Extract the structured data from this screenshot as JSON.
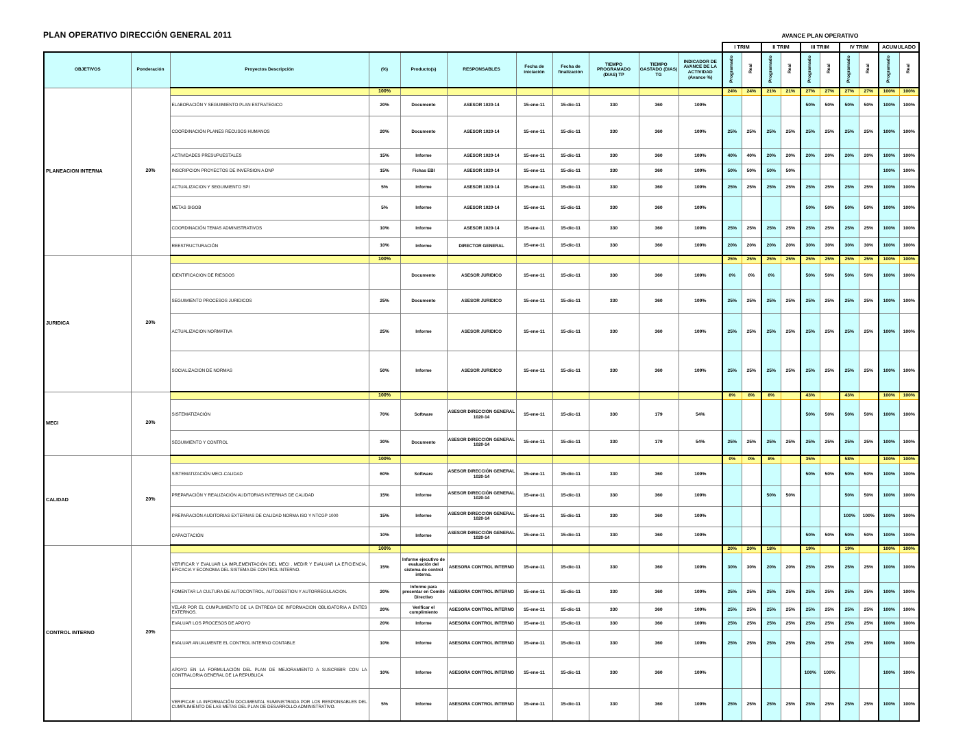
{
  "title": "PLAN OPERATIVO DIRECCIÓN GENERAL 2011",
  "avance_header": {
    "title": "AVANCE PLAN OPERATIVO",
    "trims": [
      "I TRIM",
      "II TRIM",
      "III TRIM",
      "IV TRIM",
      "ACUMULADO"
    ],
    "sub_cols": [
      "Programado",
      "Real"
    ]
  },
  "columns": [
    "OBJETIVOS",
    "Ponderación",
    "Proyectos Descripción",
    "(%)",
    "Producto(s)",
    "RESPONSABLES",
    "Fecha de iniciación",
    "Fecha de finalización",
    "TIEMPO PROGRAMADO (DIAS) TP",
    "TIEMPO GASTADO (DIAS) TG",
    "INDICADOR DE AVANCE DE LA ACTIVIDAD (Avance %)"
  ],
  "colors": {
    "header_cyan": "#ccffff",
    "programado_cyan": "#ccffff",
    "subtotal_yellow": "#ffff99",
    "subtotal_border_orange": "#e89c00"
  },
  "defaults": {
    "inicio": "15-ene-11",
    "fin": "15-dic-11",
    "tp": "330"
  },
  "sections": [
    {
      "objective": "PLANEACION INTERNA",
      "ponderacion": "20%",
      "subtotal": {
        "pct": "100%",
        "vals": [
          "24%",
          "24%",
          "21%",
          "21%",
          "27%",
          "27%",
          "27%",
          "27%",
          "100%",
          "100%"
        ]
      },
      "rows": [
        {
          "desc": "ELABORACIÓN Y SEGUIMIENTO PLAN ESTRATEGICO",
          "pct": "20%",
          "producto": "Documento",
          "responsable": "ASESOR 1020-14",
          "tg": "360",
          "indicador": "109%",
          "vals": [
            "",
            "",
            "",
            "",
            "50%",
            "50%",
            "50%",
            "50%",
            "100%",
            "100%"
          ]
        },
        {
          "desc": "COORDINACIÓN PLANES RECUSOS HUMANOS",
          "pct": "20%",
          "producto": "Documento",
          "responsable": "ASESOR 1020-14",
          "tg": "360",
          "indicador": "109%",
          "vals": [
            "25%",
            "25%",
            "25%",
            "25%",
            "25%",
            "25%",
            "25%",
            "25%",
            "100%",
            "100%"
          ]
        },
        {
          "desc": "ACTIVIDADES PRESUPUESTALES",
          "pct": "15%",
          "producto": "Informe",
          "responsable": "ASESOR 1020-14",
          "tg": "360",
          "indicador": "109%",
          "vals": [
            "40%",
            "40%",
            "20%",
            "20%",
            "20%",
            "20%",
            "20%",
            "20%",
            "100%",
            "100%"
          ]
        },
        {
          "desc": "INSCRIPCION PROYECTOS DE INVERSION A DNP",
          "pct": "15%",
          "producto": "Fichas EBI",
          "responsable": "ASESOR 1020-14",
          "tg": "360",
          "indicador": "109%",
          "vals": [
            "50%",
            "50%",
            "50%",
            "50%",
            "",
            "",
            "",
            "",
            "100%",
            "100%"
          ]
        },
        {
          "desc": "ACTUALIZACION Y SEGUIMIENTO SPI",
          "pct": "5%",
          "producto": "Informe",
          "responsable": "ASESOR 1020-14",
          "tg": "360",
          "indicador": "109%",
          "vals": [
            "25%",
            "25%",
            "25%",
            "25%",
            "25%",
            "25%",
            "25%",
            "25%",
            "100%",
            "100%"
          ]
        },
        {
          "desc": "METAS SIGOB",
          "pct": "5%",
          "producto": "Informe",
          "responsable": "ASESOR 1020-14",
          "tg": "360",
          "indicador": "109%",
          "vals": [
            "",
            "",
            "",
            "",
            "50%",
            "50%",
            "50%",
            "50%",
            "100%",
            "100%"
          ]
        },
        {
          "desc": "COORDINACIÓN  TEMAS ADMINISTRATIVOS",
          "pct": "10%",
          "producto": "Informe",
          "responsable": "ASESOR 1020-14",
          "tg": "360",
          "indicador": "109%",
          "vals": [
            "25%",
            "25%",
            "25%",
            "25%",
            "25%",
            "25%",
            "25%",
            "25%",
            "100%",
            "100%"
          ]
        },
        {
          "desc": "REESTRUCTURACIÓN",
          "pct": "10%",
          "producto": "Informe",
          "responsable": "DIRECTOR GENERAL",
          "tg": "360",
          "indicador": "109%",
          "vals": [
            "20%",
            "20%",
            "20%",
            "20%",
            "30%",
            "30%",
            "30%",
            "30%",
            "100%",
            "100%"
          ]
        }
      ]
    },
    {
      "objective": "JURIDICA",
      "ponderacion": "20%",
      "subtotal": {
        "pct": "100%",
        "vals": [
          "25%",
          "25%",
          "25%",
          "25%",
          "25%",
          "25%",
          "25%",
          "25%",
          "100%",
          "100%"
        ]
      },
      "rows": [
        {
          "desc": "IDENTIFICACION DE RIESGOS",
          "pct": "",
          "producto": "Documento",
          "responsable": "ASESOR JURIDICO",
          "tg": "360",
          "indicador": "109%",
          "vals": [
            "0%",
            "0%",
            "0%",
            "",
            "50%",
            "50%",
            "50%",
            "50%",
            "100%",
            "100%"
          ]
        },
        {
          "desc": "SEGUIMIENTO PROCESOS JURIDICOS",
          "pct": "25%",
          "producto": "Documento",
          "responsable": "ASESOR JURIDICO",
          "tg": "360",
          "indicador": "109%",
          "vals": [
            "25%",
            "25%",
            "25%",
            "25%",
            "25%",
            "25%",
            "25%",
            "25%",
            "100%",
            "100%"
          ]
        },
        {
          "desc": "ACTUALIZACION NORMATIVA",
          "pct": "25%",
          "producto": "Informe",
          "responsable": "ASESOR JURIDICO",
          "tg": "360",
          "indicador": "109%",
          "vals": [
            "25%",
            "25%",
            "25%",
            "25%",
            "25%",
            "25%",
            "25%",
            "25%",
            "100%",
            "100%"
          ]
        },
        {
          "desc": "SOCIALIZACION DE NORMAS",
          "pct": "50%",
          "producto": "Informe",
          "responsable": "ASESOR JURIDICO",
          "tg": "360",
          "indicador": "109%",
          "vals": [
            "25%",
            "25%",
            "25%",
            "25%",
            "25%",
            "25%",
            "25%",
            "25%",
            "100%",
            "100%"
          ]
        }
      ]
    },
    {
      "objective": "MECI",
      "ponderacion": "20%",
      "subtotal": {
        "pct": "100%",
        "vals": [
          "8%",
          "8%",
          "8%",
          "",
          "43%",
          "",
          "43%",
          "",
          "100%",
          "100%"
        ]
      },
      "rows": [
        {
          "desc": "SISTEMATIZACIÓN",
          "pct": "70%",
          "producto": "Software",
          "responsable": "ASESOR DIRECCIÓN GENERAL 1020-14",
          "tg": "179",
          "indicador": "54%",
          "vals": [
            "",
            "",
            "",
            "",
            "50%",
            "50%",
            "50%",
            "50%",
            "100%",
            "100%"
          ]
        },
        {
          "desc": "SEGUIMIENTO Y CONTROL",
          "pct": "30%",
          "producto": "Documento",
          "responsable": "ASESOR DIRECCIÓN GENERAL 1020-14",
          "tg": "179",
          "indicador": "54%",
          "vals": [
            "25%",
            "25%",
            "25%",
            "25%",
            "25%",
            "25%",
            "25%",
            "25%",
            "100%",
            "100%"
          ]
        }
      ]
    },
    {
      "objective": "CALIDAD",
      "ponderacion": "20%",
      "subtotal": {
        "pct": "100%",
        "vals": [
          "0%",
          "0%",
          "8%",
          "",
          "35%",
          "",
          "58%",
          "",
          "100%",
          "100%"
        ]
      },
      "rows": [
        {
          "desc": "SISTEMATIZACIÓN MECI-CALIDAD",
          "pct": "60%",
          "producto": "Software",
          "responsable": "ASESOR DIRECCIÓN GENERAL 1020-14",
          "tg": "360",
          "indicador": "109%",
          "vals": [
            "",
            "",
            "",
            "",
            "50%",
            "50%",
            "50%",
            "50%",
            "100%",
            "100%"
          ]
        },
        {
          "desc": "PREPARACIÓN Y REALIZACIÓN AUDITORIAS INTERNAS DE CALIDAD",
          "pct": "15%",
          "producto": "Informe",
          "responsable": "ASESOR DIRECCIÓN GENERAL 1020-14",
          "tg": "360",
          "indicador": "109%",
          "vals": [
            "",
            "",
            "50%",
            "50%",
            "",
            "",
            "50%",
            "50%",
            "100%",
            "100%"
          ]
        },
        {
          "desc": "PREPARACIÓN AUDITORIAS EXTERNAS DE CALIDAD NORMA ISO Y NTCGP 1000",
          "pct": "15%",
          "producto": "Informe",
          "responsable": "ASESOR DIRECCIÓN GENERAL 1020-14",
          "tg": "360",
          "indicador": "109%",
          "vals": [
            "",
            "",
            "",
            "",
            "",
            "",
            "100%",
            "100%",
            "100%",
            "100%"
          ]
        },
        {
          "desc": "CAPACITACIÓN",
          "pct": "10%",
          "producto": "Informe",
          "responsable": "ASESOR DIRECCIÓN GENERAL 1020-14",
          "tg": "360",
          "indicador": "109%",
          "vals": [
            "",
            "",
            "",
            "",
            "50%",
            "50%",
            "50%",
            "50%",
            "100%",
            "100%"
          ]
        }
      ]
    },
    {
      "objective": "CONTROL INTERNO",
      "ponderacion": "20%",
      "subtotal": {
        "pct": "100%",
        "vals": [
          "20%",
          "20%",
          "18%",
          "",
          "19%",
          "",
          "19%",
          "",
          "100%",
          "100%"
        ]
      },
      "rows": [
        {
          "desc": "VERIFICAR Y EVALUAR LA IMPLEMENTACIÓN DEL MECI . MEDIR Y EVALUAR LA EFICIENCIA, EFICACIA Y ECONOMIA DEL SISTEMA DE CONTROL INTERNO.",
          "pct": "15%",
          "producto": "Informe ejecutivo de evaluación del sistema de control interno.",
          "responsable": "ASESORA CONTROL INTERNO",
          "tg": "360",
          "indicador": "109%",
          "vals": [
            "30%",
            "30%",
            "20%",
            "20%",
            "25%",
            "25%",
            "25%",
            "25%",
            "100%",
            "100%"
          ]
        },
        {
          "desc": "FOMENTAR LA CULTURA DE AUTOCONTROL, AUTOGESTION Y AUTORREGULACION.",
          "pct": "20%",
          "producto": "Informe para presentar en Comité Directivo",
          "responsable": "ASESORA CONTROL INTERNO",
          "tg": "360",
          "indicador": "109%",
          "vals": [
            "25%",
            "25%",
            "25%",
            "25%",
            "25%",
            "25%",
            "25%",
            "25%",
            "100%",
            "100%"
          ]
        },
        {
          "desc": "VELAR POR EL CUMPLIMIENTO DE LA ENTREGA DE INFORMACION OBLIGATORIA A ENTES EXTERNOS.",
          "pct": "20%",
          "producto": "Verificar el cumplimiento",
          "responsable": "ASESORA CONTROL INTERNO",
          "tg": "360",
          "indicador": "109%",
          "vals": [
            "25%",
            "25%",
            "25%",
            "25%",
            "25%",
            "25%",
            "25%",
            "25%",
            "100%",
            "100%"
          ]
        },
        {
          "desc": "EVALUAR LOS PROCESOS DE APOYO",
          "pct": "20%",
          "producto": "Informe",
          "responsable": "ASESORA CONTROL INTERNO",
          "tg": "360",
          "indicador": "109%",
          "vals": [
            "25%",
            "25%",
            "25%",
            "25%",
            "25%",
            "25%",
            "25%",
            "25%",
            "100%",
            "100%"
          ]
        },
        {
          "desc": "EVALUAR ANUALMENTE EL CONTROL INTERNO CONTABLE",
          "pct": "10%",
          "producto": "Informe",
          "responsable": "ASESORA CONTROL INTERNO",
          "tg": "360",
          "indicador": "109%",
          "vals": [
            "25%",
            "25%",
            "25%",
            "25%",
            "25%",
            "25%",
            "25%",
            "25%",
            "100%",
            "100%"
          ]
        },
        {
          "desc": "APOYO EN LA FORMULACIÓN DEL PLAN DE MEJORAMIENTO A SUSCRIBIR CON LA CONTRALORIA GENERAL DE LA REPUBLICA",
          "pct": "10%",
          "producto": "Informe",
          "responsable": "ASESORA CONTROL INTERNO",
          "tg": "360",
          "indicador": "109%",
          "vals": [
            "",
            "",
            "",
            "",
            "100%",
            "100%",
            "",
            "",
            "100%",
            "100%"
          ]
        },
        {
          "desc": "VERIFICAR LA INFORMACIÓN DOCUMENTAL SUMINISTRADA POR LOS RESPONSABLES DEL CUMPLIMIENTO DE LAS METAS DEL PLAN DE DESARROLLO ADMINISTRATIVO.",
          "pct": "5%",
          "producto": "Informe",
          "responsable": "ASESORA CONTROL INTERNO",
          "tg": "360",
          "indicador": "109%",
          "vals": [
            "25%",
            "25%",
            "25%",
            "25%",
            "25%",
            "25%",
            "25%",
            "25%",
            "100%",
            "100%"
          ]
        }
      ]
    }
  ]
}
